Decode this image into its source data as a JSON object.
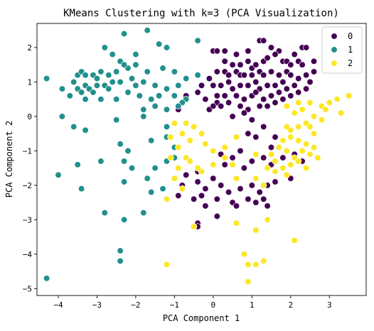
{
  "chart_data": {
    "type": "scatter",
    "title": "KMeans Clustering with k=3 (PCA Visualization)",
    "xlabel": "PCA Component 1",
    "ylabel": "PCA Component 2",
    "xlim": [
      -4.55,
      3.95
    ],
    "ylim": [
      -5.2,
      2.7
    ],
    "x_ticks": [
      -4,
      -3,
      -2,
      -1,
      0,
      1,
      2,
      3
    ],
    "y_ticks": [
      -5,
      -4,
      -3,
      -2,
      -1,
      0,
      1,
      2
    ],
    "x_tick_labels": [
      "−4",
      "−3",
      "−2",
      "−1",
      "0",
      "1",
      "2",
      "3"
    ],
    "y_tick_labels": [
      "−5",
      "−4",
      "−3",
      "−2",
      "−1",
      "0",
      "1",
      "2"
    ],
    "grid": false,
    "legend_position": "top-right",
    "series": [
      {
        "name": "0",
        "color": "#440154",
        "points": [
          [
            0.0,
            1.9
          ],
          [
            0.1,
            1.9
          ],
          [
            0.3,
            1.9
          ],
          [
            0.6,
            1.8
          ],
          [
            0.9,
            1.9
          ],
          [
            1.2,
            2.2
          ],
          [
            1.3,
            2.2
          ],
          [
            1.5,
            2.0
          ],
          [
            1.7,
            1.9
          ],
          [
            2.3,
            2.0
          ],
          [
            2.4,
            2.0
          ],
          [
            2.6,
            1.6
          ],
          [
            2.6,
            1.3
          ],
          [
            0.3,
            1.6
          ],
          [
            0.5,
            1.5
          ],
          [
            0.7,
            1.5
          ],
          [
            0.9,
            1.6
          ],
          [
            1.0,
            1.4
          ],
          [
            1.1,
            1.5
          ],
          [
            1.3,
            1.6
          ],
          [
            1.4,
            1.7
          ],
          [
            1.6,
            1.8
          ],
          [
            1.8,
            1.6
          ],
          [
            1.9,
            1.6
          ],
          [
            2.0,
            1.5
          ],
          [
            2.2,
            1.6
          ],
          [
            2.3,
            1.5
          ],
          [
            2.1,
            1.8
          ],
          [
            0.1,
            1.3
          ],
          [
            0.3,
            1.3
          ],
          [
            0.4,
            1.2
          ],
          [
            0.6,
            1.3
          ],
          [
            0.7,
            1.2
          ],
          [
            0.8,
            1.2
          ],
          [
            1.0,
            1.2
          ],
          [
            1.2,
            1.3
          ],
          [
            1.3,
            1.2
          ],
          [
            1.5,
            1.3
          ],
          [
            1.7,
            1.2
          ],
          [
            1.9,
            1.3
          ],
          [
            2.0,
            1.2
          ],
          [
            2.2,
            1.1
          ],
          [
            2.4,
            1.2
          ],
          [
            2.5,
            1.0
          ],
          [
            -0.1,
            1.1
          ],
          [
            0.0,
            0.9
          ],
          [
            0.2,
            0.9
          ],
          [
            0.4,
            1.0
          ],
          [
            0.5,
            0.8
          ],
          [
            0.7,
            0.9
          ],
          [
            0.9,
            0.9
          ],
          [
            1.1,
            1.0
          ],
          [
            1.2,
            0.8
          ],
          [
            1.4,
            0.9
          ],
          [
            1.6,
            0.9
          ],
          [
            1.8,
            1.0
          ],
          [
            1.9,
            0.8
          ],
          [
            2.1,
            0.9
          ],
          [
            2.2,
            0.7
          ],
          [
            2.4,
            0.8
          ],
          [
            -0.3,
            0.9
          ],
          [
            -0.4,
            0.7
          ],
          [
            0.1,
            0.6
          ],
          [
            0.3,
            0.6
          ],
          [
            0.6,
            0.6
          ],
          [
            0.8,
            0.5
          ],
          [
            1.0,
            0.6
          ],
          [
            1.1,
            0.7
          ],
          [
            1.3,
            0.5
          ],
          [
            1.5,
            0.6
          ],
          [
            1.7,
            0.7
          ],
          [
            1.8,
            0.5
          ],
          [
            2.0,
            0.6
          ],
          [
            -0.2,
            0.5
          ],
          [
            0.1,
            0.4
          ],
          [
            0.2,
            0.3
          ],
          [
            0.4,
            0.4
          ],
          [
            0.7,
            0.3
          ],
          [
            0.9,
            0.2
          ],
          [
            1.2,
            0.3
          ],
          [
            1.4,
            0.3
          ],
          [
            1.6,
            0.4
          ],
          [
            -0.1,
            0.2
          ],
          [
            0.0,
            0.3
          ],
          [
            -0.7,
            0.6
          ],
          [
            -0.9,
            0.2
          ],
          [
            0.5,
            0.0
          ],
          [
            0.8,
            0.1
          ],
          [
            1.0,
            -0.1
          ],
          [
            1.3,
            -0.3
          ],
          [
            0.9,
            -0.5
          ],
          [
            1.1,
            -0.6
          ],
          [
            1.6,
            -0.6
          ],
          [
            1.5,
            -0.9
          ],
          [
            0.2,
            -1.1
          ],
          [
            0.5,
            -1.2
          ],
          [
            0.7,
            -1.0
          ],
          [
            1.0,
            -1.3
          ],
          [
            1.3,
            -1.2
          ],
          [
            1.5,
            -1.4
          ],
          [
            1.8,
            -1.2
          ],
          [
            2.1,
            -1.1
          ],
          [
            2.3,
            -1.3
          ],
          [
            0.3,
            -1.4
          ],
          [
            0.8,
            -1.5
          ],
          [
            -0.7,
            -1.7
          ],
          [
            -0.4,
            -1.6
          ],
          [
            -0.8,
            -2.0
          ],
          [
            -0.4,
            -1.9
          ],
          [
            -0.2,
            -2.1
          ],
          [
            0.0,
            -1.8
          ],
          [
            0.2,
            -2.0
          ],
          [
            0.4,
            -2.2
          ],
          [
            0.7,
            -2.1
          ],
          [
            1.0,
            -2.0
          ],
          [
            1.2,
            -2.2
          ],
          [
            1.4,
            -2.0
          ],
          [
            1.6,
            -1.9
          ],
          [
            2.0,
            -1.8
          ],
          [
            -0.9,
            -2.3
          ],
          [
            -0.5,
            -2.4
          ],
          [
            -0.3,
            -2.3
          ],
          [
            0.1,
            -2.4
          ],
          [
            0.5,
            -2.5
          ],
          [
            0.9,
            -2.4
          ],
          [
            1.1,
            -2.5
          ],
          [
            1.3,
            -2.4
          ],
          [
            -0.2,
            -2.6
          ],
          [
            0.6,
            -2.6
          ],
          [
            1.4,
            -2.6
          ],
          [
            0.1,
            -2.9
          ],
          [
            -0.4,
            -3.1
          ],
          [
            -0.4,
            -3.2
          ]
        ]
      },
      {
        "name": "1",
        "color": "#21908c",
        "points": [
          [
            -2.8,
            2.0
          ],
          [
            -2.6,
            1.8
          ],
          [
            -2.3,
            2.4
          ],
          [
            -1.7,
            2.5
          ],
          [
            -1.4,
            2.1
          ],
          [
            -2.0,
            1.8
          ],
          [
            -1.2,
            2.0
          ],
          [
            -0.4,
            2.2
          ],
          [
            -2.4,
            1.6
          ],
          [
            -4.3,
            1.1
          ],
          [
            -3.6,
            1.0
          ],
          [
            -3.5,
            1.2
          ],
          [
            -3.4,
            1.3
          ],
          [
            -3.3,
            1.2
          ],
          [
            -3.1,
            1.2
          ],
          [
            -3.0,
            1.1
          ],
          [
            -2.9,
            1.3
          ],
          [
            -2.7,
            1.2
          ],
          [
            -2.5,
            1.3
          ],
          [
            -2.2,
            1.4
          ],
          [
            -2.0,
            1.5
          ],
          [
            -1.7,
            1.3
          ],
          [
            -1.3,
            1.4
          ],
          [
            -1.0,
            1.3
          ],
          [
            -0.7,
            1.1
          ],
          [
            -0.4,
            1.2
          ],
          [
            -3.9,
            0.8
          ],
          [
            -3.5,
            0.8
          ],
          [
            -3.3,
            0.9
          ],
          [
            -3.2,
            0.8
          ],
          [
            -3.0,
            0.9
          ],
          [
            -2.8,
            0.9
          ],
          [
            -2.7,
            0.8
          ],
          [
            -2.6,
            1.0
          ],
          [
            -2.4,
            1.0
          ],
          [
            -2.3,
            1.5
          ],
          [
            -2.1,
            1.1
          ],
          [
            -2.0,
            0.9
          ],
          [
            -1.8,
            1.0
          ],
          [
            -1.5,
            0.9
          ],
          [
            -1.2,
            0.8
          ],
          [
            -0.9,
            0.9
          ],
          [
            -3.7,
            0.6
          ],
          [
            -3.4,
            0.7
          ],
          [
            -3.3,
            0.5
          ],
          [
            -3.1,
            0.7
          ],
          [
            -2.9,
            0.5
          ],
          [
            -2.5,
            0.5
          ],
          [
            -2.2,
            0.7
          ],
          [
            -1.9,
            0.6
          ],
          [
            -1.6,
            0.5
          ],
          [
            -1.4,
            0.6
          ],
          [
            -1.0,
            0.6
          ],
          [
            -0.7,
            0.5
          ],
          [
            -1.8,
            0.2
          ],
          [
            -1.5,
            0.3
          ],
          [
            -1.2,
            0.2
          ],
          [
            -0.8,
            0.4
          ],
          [
            -0.9,
            0.3
          ],
          [
            -3.9,
            0.0
          ],
          [
            -3.6,
            -0.3
          ],
          [
            -2.5,
            -0.1
          ],
          [
            -1.8,
            0.0
          ],
          [
            -1.2,
            -0.3
          ],
          [
            -3.3,
            -0.4
          ],
          [
            -2.4,
            -0.8
          ],
          [
            -2.2,
            -1.0
          ],
          [
            -1.6,
            -0.7
          ],
          [
            -1.2,
            -0.6
          ],
          [
            -1.0,
            -0.9
          ],
          [
            -2.9,
            -1.3
          ],
          [
            -2.3,
            -1.3
          ],
          [
            -2.1,
            -1.5
          ],
          [
            -1.7,
            -1.8
          ],
          [
            -1.5,
            -1.5
          ],
          [
            -1.2,
            -1.3
          ],
          [
            -1.0,
            -1.2
          ],
          [
            -4.0,
            -1.7
          ],
          [
            -3.5,
            -1.4
          ],
          [
            -3.4,
            -2.1
          ],
          [
            -2.3,
            -1.9
          ],
          [
            -1.6,
            -2.2
          ],
          [
            -1.3,
            -2.1
          ],
          [
            -2.8,
            -2.8
          ],
          [
            -2.3,
            -3.0
          ],
          [
            -1.8,
            -2.8
          ],
          [
            -2.4,
            -3.9
          ],
          [
            -2.4,
            -4.2
          ],
          [
            -4.3,
            -4.7
          ]
        ]
      },
      {
        "name": "2",
        "color": "#fde725",
        "points": [
          [
            3.5,
            0.6
          ],
          [
            3.2,
            0.5
          ],
          [
            3.0,
            0.4
          ],
          [
            2.8,
            0.3
          ],
          [
            2.5,
            0.4
          ],
          [
            2.3,
            0.2
          ],
          [
            2.6,
            0.0
          ],
          [
            2.9,
            0.2
          ],
          [
            2.1,
            0.1
          ],
          [
            1.9,
            0.3
          ],
          [
            2.2,
            0.4
          ],
          [
            3.3,
            0.1
          ],
          [
            -1.0,
            -0.2
          ],
          [
            -0.7,
            -0.2
          ],
          [
            -0.5,
            -0.3
          ],
          [
            -1.1,
            -0.6
          ],
          [
            -0.8,
            -0.5
          ],
          [
            -0.6,
            -0.7
          ],
          [
            -0.3,
            -0.5
          ],
          [
            -0.9,
            -0.9
          ],
          [
            -0.2,
            -0.8
          ],
          [
            0.0,
            -1.0
          ],
          [
            0.3,
            -0.9
          ],
          [
            0.6,
            -0.6
          ],
          [
            1.9,
            -0.3
          ],
          [
            2.0,
            -0.4
          ],
          [
            2.2,
            -0.3
          ],
          [
            2.4,
            -0.2
          ],
          [
            2.5,
            -0.3
          ],
          [
            2.6,
            -0.5
          ],
          [
            2.8,
            -0.1
          ],
          [
            2.0,
            -0.6
          ],
          [
            2.2,
            -0.7
          ],
          [
            2.4,
            -0.8
          ],
          [
            2.6,
            -0.9
          ],
          [
            2.3,
            -1.0
          ],
          [
            2.5,
            -1.1
          ],
          [
            2.7,
            -1.2
          ],
          [
            1.8,
            -0.7
          ],
          [
            1.7,
            -0.9
          ],
          [
            1.9,
            -1.0
          ],
          [
            2.1,
            -1.2
          ],
          [
            2.2,
            -1.3
          ],
          [
            2.4,
            -1.5
          ],
          [
            1.5,
            -1.1
          ],
          [
            1.6,
            -1.3
          ],
          [
            1.4,
            -1.5
          ],
          [
            1.6,
            -1.6
          ],
          [
            1.8,
            -1.5
          ],
          [
            1.9,
            -1.7
          ],
          [
            2.0,
            -1.4
          ],
          [
            -0.6,
            -1.3
          ],
          [
            -0.3,
            -1.6
          ],
          [
            -0.4,
            -1.5
          ],
          [
            0.0,
            -1.4
          ],
          [
            0.3,
            -1.2
          ],
          [
            0.5,
            -1.4
          ],
          [
            1.1,
            -1.1
          ],
          [
            -0.9,
            -1.5
          ],
          [
            -0.7,
            -1.2
          ],
          [
            -1.1,
            -1.2
          ],
          [
            -1.0,
            -1.8
          ],
          [
            -0.8,
            -2.1
          ],
          [
            -1.2,
            -2.4
          ],
          [
            0.6,
            -1.8
          ],
          [
            1.1,
            -1.8
          ],
          [
            1.3,
            -2.0
          ],
          [
            1.1,
            -3.3
          ],
          [
            1.4,
            -3.0
          ],
          [
            0.6,
            -3.1
          ],
          [
            2.1,
            -3.6
          ],
          [
            -0.5,
            -3.2
          ],
          [
            0.8,
            -4.0
          ],
          [
            0.9,
            -4.3
          ],
          [
            1.1,
            -4.3
          ],
          [
            1.3,
            -4.2
          ],
          [
            0.9,
            -4.8
          ],
          [
            -1.2,
            -4.3
          ]
        ]
      }
    ]
  }
}
